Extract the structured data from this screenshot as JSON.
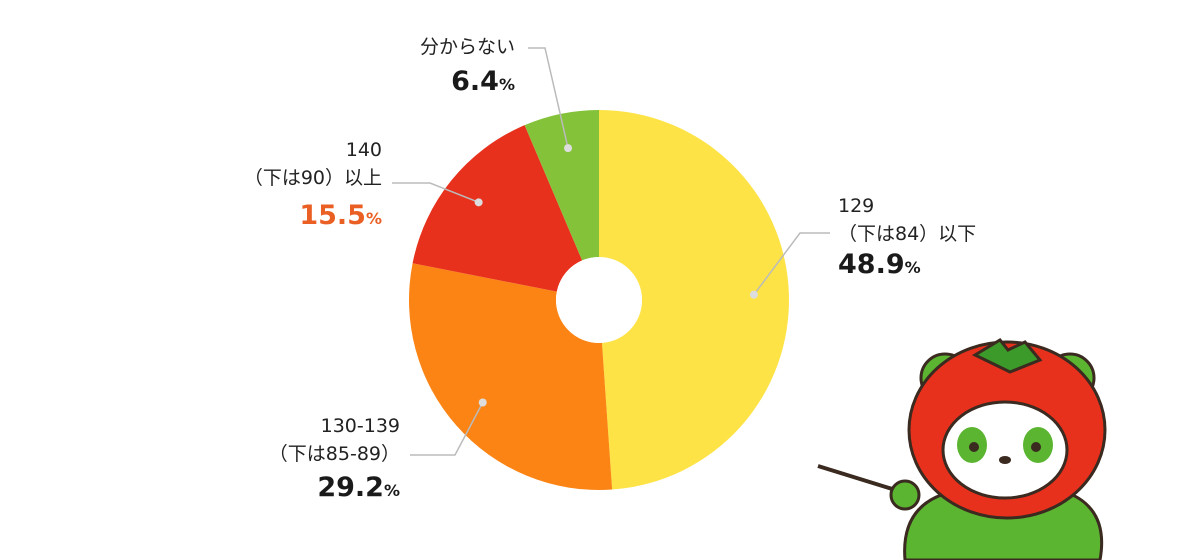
{
  "chart_data": {
    "type": "donut",
    "categories": [
      [
        "129",
        "（下は84）以下"
      ],
      [
        "130-139",
        "（下は85-89）"
      ],
      [
        "140",
        "（下は90）以上"
      ],
      [
        "分からない"
      ]
    ],
    "values": [
      48.9,
      29.2,
      15.5,
      6.4
    ],
    "unit": "%",
    "colors": [
      "#fde345",
      "#fb8414",
      "#e8311c",
      "#84c23a"
    ],
    "label_colors": [
      "#1a1a1a",
      "#1a1a1a",
      "#ea5f24",
      "#1a1a1a"
    ]
  }
}
